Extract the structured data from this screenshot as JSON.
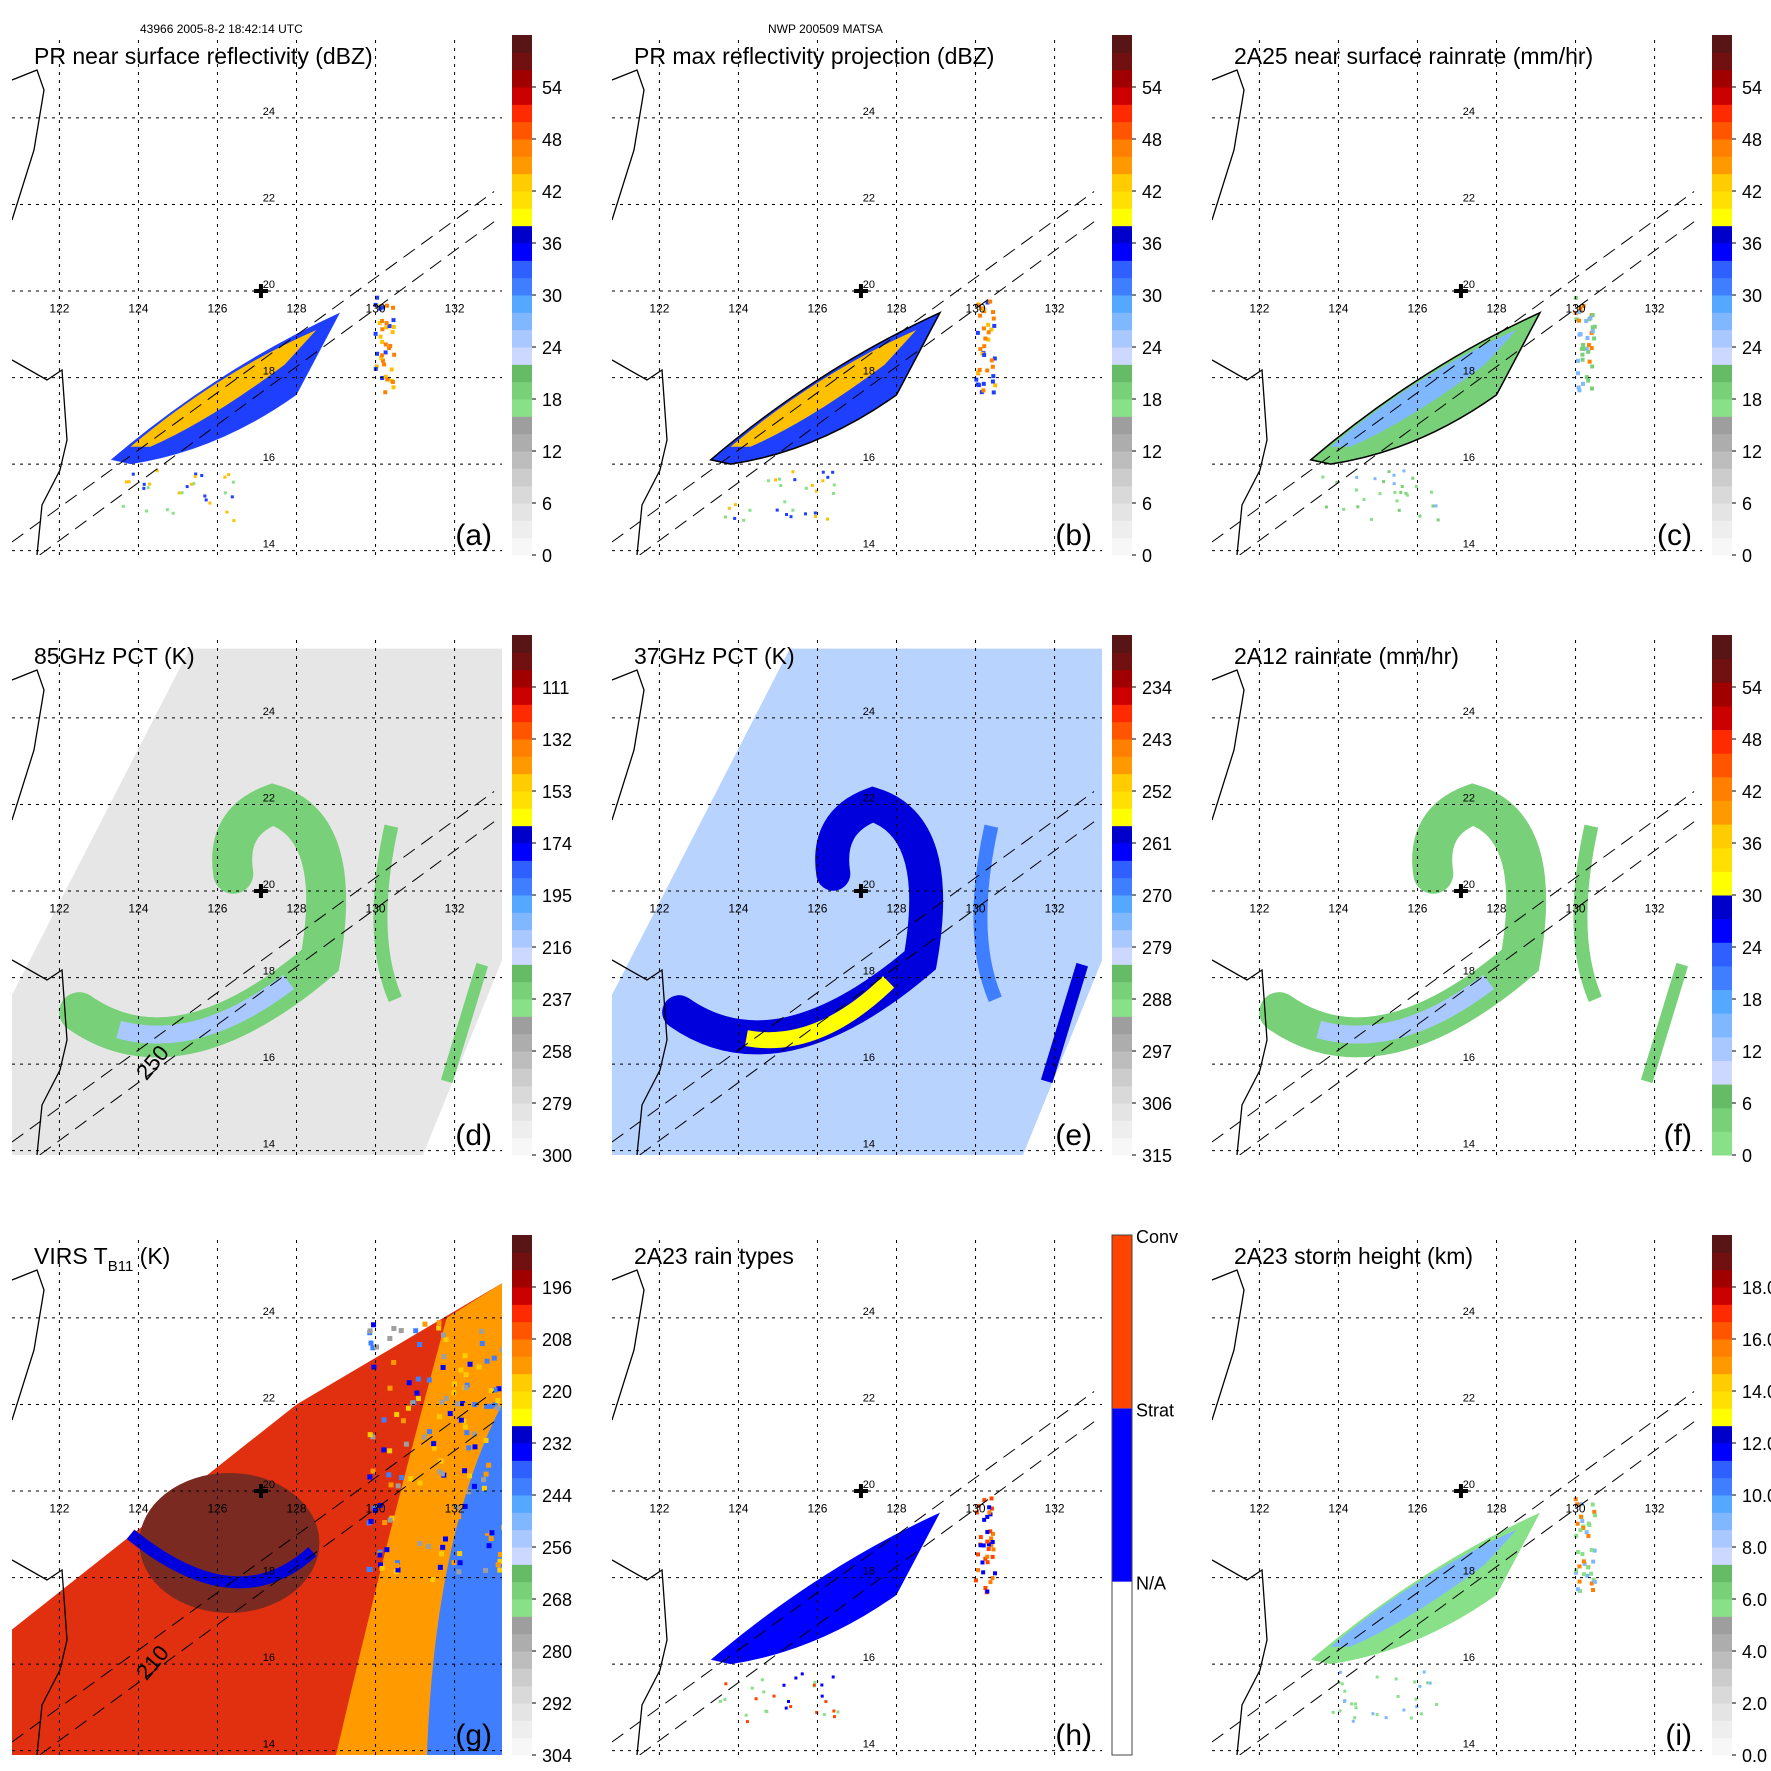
{
  "header": {
    "left": "43966 2005-8-2 18:42:14 UTC",
    "center": "NWP 200509 MATSA"
  },
  "map": {
    "lon_ticks": [
      122,
      124,
      126,
      128,
      130,
      132
    ],
    "lat_ticks": [
      14,
      16,
      18,
      20,
      22,
      24
    ],
    "lon_range": [
      120.8,
      133.2
    ],
    "lat_range": [
      13.9,
      25.8
    ],
    "storm_center": {
      "lon": 127.1,
      "lat": 20.0
    },
    "swath_lines": [
      [
        [
          120.8,
          14.2
        ],
        [
          133.0,
          22.3
        ]
      ],
      [
        [
          121.5,
          13.9
        ],
        [
          133.0,
          21.6
        ]
      ]
    ]
  },
  "colors": {
    "standard_ramp": [
      "#f7f7f7",
      "#eeeeee",
      "#e4e4e4",
      "#d9d9d9",
      "#cccccc",
      "#bdbdbd",
      "#adadad",
      "#9e9e9e",
      "#88e088",
      "#78d078",
      "#66bb66",
      "#ccd8ff",
      "#a8c8ff",
      "#80b8ff",
      "#55a8ff",
      "#3f7fff",
      "#2f5fff",
      "#0000ff",
      "#0000cc",
      "#ffff00",
      "#ffe000",
      "#ffcc00",
      "#ff9900",
      "#ff8000",
      "#ff5500",
      "#ff2a00",
      "#cc0000",
      "#a00000",
      "#701010",
      "#581515"
    ],
    "rain_type": {
      "na": "#ffffff",
      "strat": "#0000ff",
      "conv": "#ff4400"
    }
  },
  "chart_data": [
    {
      "id": "a",
      "type": "heatmap",
      "title": "PR near surface reflectivity (dBZ)",
      "panel_label": "(a)",
      "colorbar": {
        "ticks": [
          "0",
          "6",
          "12",
          "18",
          "24",
          "30",
          "36",
          "42",
          "48",
          "54"
        ],
        "range": [
          0,
          60
        ],
        "kind": "standard"
      },
      "coverage": "pr_swath",
      "background": "none",
      "contour": false
    },
    {
      "id": "b",
      "type": "heatmap",
      "title": "PR max reflectivity projection (dBZ)",
      "panel_label": "(b)",
      "colorbar": {
        "ticks": [
          "0",
          "6",
          "12",
          "18",
          "24",
          "30",
          "36",
          "42",
          "48",
          "54"
        ],
        "range": [
          0,
          60
        ],
        "kind": "standard"
      },
      "coverage": "pr_swath",
      "background": "none",
      "contour": true
    },
    {
      "id": "c",
      "type": "heatmap",
      "title": "2A25 near surface rainrate (mm/hr)",
      "panel_label": "(c)",
      "colorbar": {
        "ticks": [
          "0",
          "6",
          "12",
          "18",
          "24",
          "30",
          "36",
          "42",
          "48",
          "54"
        ],
        "range": [
          0,
          60
        ],
        "kind": "standard"
      },
      "coverage": "pr_swath",
      "background": "none",
      "contour": true
    },
    {
      "id": "d",
      "type": "heatmap",
      "title": "85GHz PCT (K)",
      "panel_label": "(d)",
      "colorbar": {
        "ticks": [
          "300",
          "279",
          "258",
          "237",
          "216",
          "195",
          "174",
          "153",
          "132",
          "111"
        ],
        "range": [
          300,
          90
        ],
        "kind": "standard"
      },
      "coverage": "tmi_swath",
      "background": "gray",
      "contour": true,
      "contour_label": "250"
    },
    {
      "id": "e",
      "type": "heatmap",
      "title": "37GHz PCT (K)",
      "panel_label": "(e)",
      "colorbar": {
        "ticks": [
          "315",
          "306",
          "297",
          "288",
          "279",
          "270",
          "261",
          "252",
          "243",
          "234"
        ],
        "range": [
          315,
          225
        ],
        "kind": "standard"
      },
      "coverage": "tmi_swath",
      "background": "lightblue",
      "contour": false
    },
    {
      "id": "f",
      "type": "heatmap",
      "title": "2A12 rainrate (mm/hr)",
      "panel_label": "(f)",
      "colorbar": {
        "ticks": [
          "0",
          "6",
          "12",
          "18",
          "24",
          "30",
          "36",
          "42",
          "48",
          "54"
        ],
        "range": [
          0,
          60
        ],
        "kind": "standard_nogray"
      },
      "coverage": "tmi_swath",
      "background": "none",
      "contour": true
    },
    {
      "id": "g",
      "type": "heatmap",
      "title": "VIRS T",
      "title_sub": "B11",
      "title_suffix": " (K)",
      "panel_label": "(g)",
      "colorbar": {
        "ticks": [
          "304",
          "292",
          "280",
          "268",
          "256",
          "244",
          "232",
          "220",
          "208",
          "196"
        ],
        "range": [
          304,
          184
        ],
        "kind": "standard"
      },
      "coverage": "virs_swath",
      "background": "red",
      "contour": true,
      "contour_label": "210"
    },
    {
      "id": "h",
      "type": "heatmap",
      "title": "2A23 rain types",
      "panel_label": "(h)",
      "colorbar": {
        "ticks": [
          "N/A",
          "Strat",
          "Conv"
        ],
        "kind": "categorical"
      },
      "coverage": "pr_swath",
      "background": "none",
      "contour": false
    },
    {
      "id": "i",
      "type": "heatmap",
      "title": "2A23 storm height (km)",
      "panel_label": "(i)",
      "colorbar": {
        "ticks": [
          "0.0",
          "2.0",
          "4.0",
          "6.0",
          "8.0",
          "10.0",
          "12.0",
          "14.0",
          "16.0",
          "18.0"
        ],
        "range": [
          0,
          20
        ],
        "kind": "standard"
      },
      "coverage": "pr_swath",
      "background": "none",
      "contour": false
    }
  ]
}
